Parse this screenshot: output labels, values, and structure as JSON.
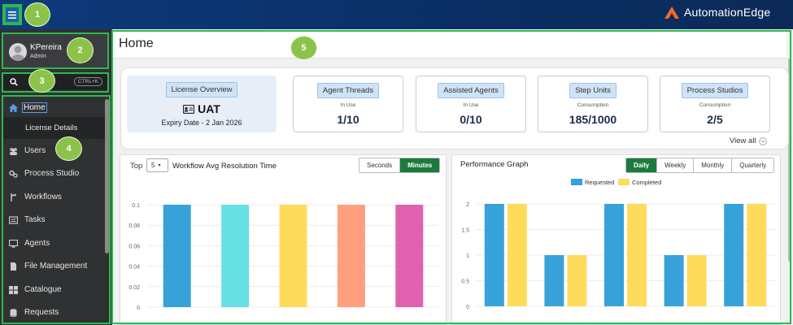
{
  "brand": "AutomationEdge",
  "annotations": [
    "1",
    "2",
    "3",
    "4",
    "5"
  ],
  "user": {
    "name": "KPereira",
    "role": "Admin"
  },
  "search": {
    "shortcut": "CTRL+K"
  },
  "nav": [
    {
      "label": "Home",
      "icon": "home-icon",
      "active": true
    },
    {
      "label": "License Details",
      "sub": true
    },
    {
      "label": "Users",
      "icon": "users-icon"
    },
    {
      "label": "Process Studio",
      "icon": "process-studio-icon"
    },
    {
      "label": "Workflows",
      "icon": "workflows-icon"
    },
    {
      "label": "Tasks",
      "icon": "tasks-icon"
    },
    {
      "label": "Agents",
      "icon": "agents-icon"
    },
    {
      "label": "File Management",
      "icon": "file-icon"
    },
    {
      "label": "Catalogue",
      "icon": "catalogue-icon"
    },
    {
      "label": "Requests",
      "icon": "requests-icon"
    }
  ],
  "page": {
    "title": "Home"
  },
  "license": {
    "button": "License Overview",
    "name": "UAT",
    "expiry": "Expiry Date - 2 Jan 2026"
  },
  "stats": [
    {
      "label": "Agent Threads",
      "sub": "In Use",
      "value": "1/10"
    },
    {
      "label": "Assisted Agents",
      "sub": "In Use",
      "value": "0/10"
    },
    {
      "label": "Step Units",
      "sub": "Consumption",
      "value": "185/1000"
    },
    {
      "label": "Process Studios",
      "sub": "Consumption",
      "value": "2/5"
    }
  ],
  "view_all": "View all",
  "left_chart": {
    "top_label": "Top",
    "top_value": "5",
    "title": "Workflow Avg Resolution Time",
    "toggle": [
      "Seconds",
      "Minutes"
    ],
    "active": "Minutes"
  },
  "right_chart": {
    "title": "Performance Graph",
    "toggle": [
      "Daily",
      "Weekly",
      "Monthly",
      "Quarterly"
    ],
    "active": "Daily"
  },
  "chart_data": [
    {
      "type": "bar",
      "title": "Workflow Avg Resolution Time",
      "categories": [
        "",
        "",
        "",
        "",
        ""
      ],
      "values": [
        0.1,
        0.1,
        0.1,
        0.1,
        0.1
      ],
      "colors": [
        "#37a2da",
        "#67e0e3",
        "#ffdb5c",
        "#ff9f7f",
        "#e062ae"
      ],
      "ylim": [
        0,
        0.1
      ],
      "yticks": [
        "0",
        "0.02",
        "0.04",
        "0.06",
        "0.08",
        "0.1"
      ]
    },
    {
      "type": "bar",
      "title": "Performance Graph",
      "legend": [
        "Requested",
        "Completed"
      ],
      "series": [
        {
          "name": "Requested",
          "values": [
            2,
            1,
            2,
            1,
            2
          ],
          "color": "#37a2da"
        },
        {
          "name": "Completed",
          "values": [
            2,
            1,
            2,
            1,
            2
          ],
          "color": "#ffdb5c"
        }
      ],
      "ylim": [
        0,
        2
      ],
      "yticks": [
        "0",
        "0.5",
        "1",
        "1.5",
        "2"
      ]
    }
  ]
}
